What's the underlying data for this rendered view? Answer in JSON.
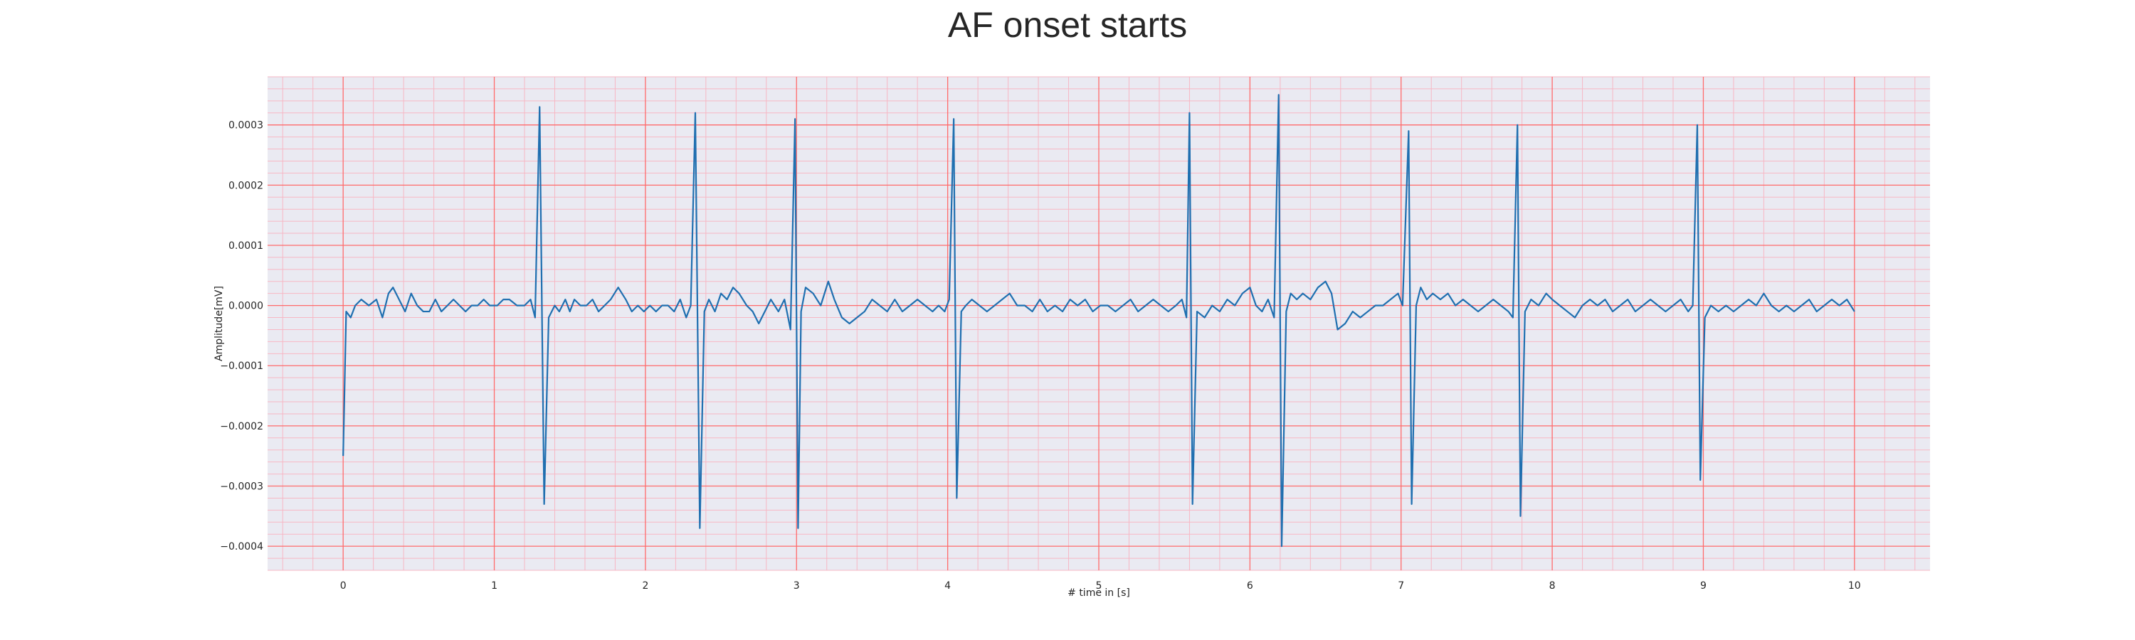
{
  "chart_data": {
    "type": "line",
    "title": "AF onset starts",
    "xlabel": "# time in [s]",
    "ylabel": "Amplitude[mV]",
    "xlim": [
      -0.5,
      10.5
    ],
    "ylim": [
      -0.00044,
      0.00038
    ],
    "xticks": [
      0,
      1,
      2,
      3,
      4,
      5,
      6,
      7,
      8,
      9,
      10
    ],
    "xtick_labels": [
      "0",
      "1",
      "2",
      "3",
      "4",
      "5",
      "6",
      "7",
      "8",
      "9",
      "10"
    ],
    "yticks": [
      0.0003,
      0.0002,
      0.0001,
      0.0,
      -0.0001,
      -0.0002,
      -0.0003,
      -0.0004
    ],
    "ytick_labels": [
      "0.0003",
      "0.0002",
      "0.0001",
      "0.0000",
      "−0.0001",
      "−0.0002",
      "−0.0003",
      "−0.0004"
    ],
    "grid": true,
    "colors": {
      "background": "#eaeaf2",
      "major_grid": "#ff6b6b",
      "minor_grid": "#f7b7c4",
      "line": "#1f6fb0"
    },
    "series": [
      {
        "values_x_y": [
          [
            0.0,
            -0.00025
          ],
          [
            0.02,
            -1e-05
          ],
          [
            0.05,
            -2e-05
          ],
          [
            0.08,
            0.0
          ],
          [
            0.12,
            1e-05
          ],
          [
            0.17,
            0.0
          ],
          [
            0.22,
            1e-05
          ],
          [
            0.26,
            -2e-05
          ],
          [
            0.3,
            2e-05
          ],
          [
            0.33,
            3e-05
          ],
          [
            0.37,
            1e-05
          ],
          [
            0.41,
            -1e-05
          ],
          [
            0.45,
            2e-05
          ],
          [
            0.49,
            0.0
          ],
          [
            0.53,
            -1e-05
          ],
          [
            0.57,
            -1e-05
          ],
          [
            0.61,
            1e-05
          ],
          [
            0.65,
            -1e-05
          ],
          [
            0.69,
            0.0
          ],
          [
            0.73,
            1e-05
          ],
          [
            0.77,
            0.0
          ],
          [
            0.81,
            -1e-05
          ],
          [
            0.85,
            0.0
          ],
          [
            0.89,
            0.0
          ],
          [
            0.93,
            1e-05
          ],
          [
            0.97,
            0.0
          ],
          [
            1.02,
            0.0
          ],
          [
            1.06,
            1e-05
          ],
          [
            1.1,
            1e-05
          ],
          [
            1.15,
            0.0
          ],
          [
            1.2,
            0.0
          ],
          [
            1.24,
            1e-05
          ],
          [
            1.27,
            -2e-05
          ],
          [
            1.3,
            0.00033
          ],
          [
            1.33,
            -0.00033
          ],
          [
            1.36,
            -2e-05
          ],
          [
            1.4,
            0.0
          ],
          [
            1.43,
            -1e-05
          ],
          [
            1.47,
            1e-05
          ],
          [
            1.5,
            -1e-05
          ],
          [
            1.53,
            1e-05
          ],
          [
            1.57,
            0.0
          ],
          [
            1.61,
            0.0
          ],
          [
            1.65,
            1e-05
          ],
          [
            1.69,
            -1e-05
          ],
          [
            1.73,
            0.0
          ],
          [
            1.77,
            1e-05
          ],
          [
            1.82,
            3e-05
          ],
          [
            1.87,
            1e-05
          ],
          [
            1.91,
            -1e-05
          ],
          [
            1.95,
            0.0
          ],
          [
            1.99,
            -1e-05
          ],
          [
            2.03,
            0.0
          ],
          [
            2.07,
            -1e-05
          ],
          [
            2.11,
            0.0
          ],
          [
            2.15,
            0.0
          ],
          [
            2.19,
            -1e-05
          ],
          [
            2.23,
            1e-05
          ],
          [
            2.27,
            -2e-05
          ],
          [
            2.3,
            0.0
          ],
          [
            2.33,
            0.00032
          ],
          [
            2.36,
            -0.00037
          ],
          [
            2.39,
            -1e-05
          ],
          [
            2.42,
            1e-05
          ],
          [
            2.46,
            -1e-05
          ],
          [
            2.5,
            2e-05
          ],
          [
            2.54,
            1e-05
          ],
          [
            2.58,
            3e-05
          ],
          [
            2.62,
            2e-05
          ],
          [
            2.67,
            0.0
          ],
          [
            2.71,
            -1e-05
          ],
          [
            2.75,
            -3e-05
          ],
          [
            2.79,
            -1e-05
          ],
          [
            2.83,
            1e-05
          ],
          [
            2.88,
            -1e-05
          ],
          [
            2.92,
            1e-05
          ],
          [
            2.96,
            -4e-05
          ],
          [
            2.99,
            0.00031
          ],
          [
            3.01,
            -0.00037
          ],
          [
            3.03,
            -1e-05
          ],
          [
            3.06,
            3e-05
          ],
          [
            3.11,
            2e-05
          ],
          [
            3.16,
            0.0
          ],
          [
            3.21,
            4e-05
          ],
          [
            3.25,
            1e-05
          ],
          [
            3.3,
            -2e-05
          ],
          [
            3.35,
            -3e-05
          ],
          [
            3.4,
            -2e-05
          ],
          [
            3.45,
            -1e-05
          ],
          [
            3.5,
            1e-05
          ],
          [
            3.55,
            0.0
          ],
          [
            3.6,
            -1e-05
          ],
          [
            3.65,
            1e-05
          ],
          [
            3.7,
            -1e-05
          ],
          [
            3.75,
            0.0
          ],
          [
            3.8,
            1e-05
          ],
          [
            3.85,
            0.0
          ],
          [
            3.9,
            -1e-05
          ],
          [
            3.94,
            0.0
          ],
          [
            3.98,
            -1e-05
          ],
          [
            4.01,
            1e-05
          ],
          [
            4.04,
            0.00031
          ],
          [
            4.06,
            -0.00032
          ],
          [
            4.09,
            -1e-05
          ],
          [
            4.12,
            0.0
          ],
          [
            4.16,
            1e-05
          ],
          [
            4.21,
            0.0
          ],
          [
            4.26,
            -1e-05
          ],
          [
            4.31,
            0.0
          ],
          [
            4.36,
            1e-05
          ],
          [
            4.41,
            2e-05
          ],
          [
            4.46,
            0.0
          ],
          [
            4.51,
            0.0
          ],
          [
            4.56,
            -1e-05
          ],
          [
            4.61,
            1e-05
          ],
          [
            4.66,
            -1e-05
          ],
          [
            4.71,
            0.0
          ],
          [
            4.76,
            -1e-05
          ],
          [
            4.81,
            1e-05
          ],
          [
            4.86,
            0.0
          ],
          [
            4.91,
            1e-05
          ],
          [
            4.96,
            -1e-05
          ],
          [
            5.01,
            0.0
          ],
          [
            5.06,
            0.0
          ],
          [
            5.11,
            -1e-05
          ],
          [
            5.16,
            0.0
          ],
          [
            5.21,
            1e-05
          ],
          [
            5.26,
            -1e-05
          ],
          [
            5.31,
            0.0
          ],
          [
            5.36,
            1e-05
          ],
          [
            5.41,
            0.0
          ],
          [
            5.46,
            -1e-05
          ],
          [
            5.51,
            0.0
          ],
          [
            5.55,
            1e-05
          ],
          [
            5.58,
            -2e-05
          ],
          [
            5.6,
            0.00032
          ],
          [
            5.62,
            -0.00033
          ],
          [
            5.65,
            -1e-05
          ],
          [
            5.7,
            -2e-05
          ],
          [
            5.75,
            0.0
          ],
          [
            5.8,
            -1e-05
          ],
          [
            5.85,
            1e-05
          ],
          [
            5.9,
            0.0
          ],
          [
            5.95,
            2e-05
          ],
          [
            6.0,
            3e-05
          ],
          [
            6.04,
            0.0
          ],
          [
            6.08,
            -1e-05
          ],
          [
            6.12,
            1e-05
          ],
          [
            6.16,
            -2e-05
          ],
          [
            6.19,
            0.00035
          ],
          [
            6.21,
            -0.0004
          ],
          [
            6.24,
            -1e-05
          ],
          [
            6.27,
            2e-05
          ],
          [
            6.31,
            1e-05
          ],
          [
            6.35,
            2e-05
          ],
          [
            6.4,
            1e-05
          ],
          [
            6.45,
            3e-05
          ],
          [
            6.5,
            4e-05
          ],
          [
            6.54,
            2e-05
          ],
          [
            6.58,
            -4e-05
          ],
          [
            6.63,
            -3e-05
          ],
          [
            6.68,
            -1e-05
          ],
          [
            6.73,
            -2e-05
          ],
          [
            6.78,
            -1e-05
          ],
          [
            6.83,
            0.0
          ],
          [
            6.88,
            0.0
          ],
          [
            6.93,
            1e-05
          ],
          [
            6.98,
            2e-05
          ],
          [
            7.01,
            0.0
          ],
          [
            7.05,
            0.00029
          ],
          [
            7.07,
            -0.00033
          ],
          [
            7.1,
            0.0
          ],
          [
            7.13,
            3e-05
          ],
          [
            7.17,
            1e-05
          ],
          [
            7.21,
            2e-05
          ],
          [
            7.26,
            1e-05
          ],
          [
            7.31,
            2e-05
          ],
          [
            7.36,
            0.0
          ],
          [
            7.41,
            1e-05
          ],
          [
            7.46,
            0.0
          ],
          [
            7.51,
            -1e-05
          ],
          [
            7.56,
            0.0
          ],
          [
            7.61,
            1e-05
          ],
          [
            7.66,
            0.0
          ],
          [
            7.71,
            -1e-05
          ],
          [
            7.74,
            -2e-05
          ],
          [
            7.77,
            0.0003
          ],
          [
            7.79,
            -0.00035
          ],
          [
            7.82,
            -1e-05
          ],
          [
            7.86,
            1e-05
          ],
          [
            7.91,
            0.0
          ],
          [
            7.96,
            2e-05
          ],
          [
            8.0,
            1e-05
          ],
          [
            8.05,
            0.0
          ],
          [
            8.1,
            -1e-05
          ],
          [
            8.15,
            -2e-05
          ],
          [
            8.2,
            0.0
          ],
          [
            8.25,
            1e-05
          ],
          [
            8.3,
            0.0
          ],
          [
            8.35,
            1e-05
          ],
          [
            8.4,
            -1e-05
          ],
          [
            8.45,
            0.0
          ],
          [
            8.5,
            1e-05
          ],
          [
            8.55,
            -1e-05
          ],
          [
            8.6,
            0.0
          ],
          [
            8.65,
            1e-05
          ],
          [
            8.7,
            0.0
          ],
          [
            8.75,
            -1e-05
          ],
          [
            8.8,
            0.0
          ],
          [
            8.85,
            1e-05
          ],
          [
            8.9,
            -1e-05
          ],
          [
            8.93,
            0.0
          ],
          [
            8.96,
            0.0003
          ],
          [
            8.98,
            -0.00029
          ],
          [
            9.01,
            -2e-05
          ],
          [
            9.05,
            0.0
          ],
          [
            9.1,
            -1e-05
          ],
          [
            9.15,
            0.0
          ],
          [
            9.2,
            -1e-05
          ],
          [
            9.25,
            0.0
          ],
          [
            9.3,
            1e-05
          ],
          [
            9.35,
            0.0
          ],
          [
            9.4,
            2e-05
          ],
          [
            9.45,
            0.0
          ],
          [
            9.5,
            -1e-05
          ],
          [
            9.55,
            0.0
          ],
          [
            9.6,
            -1e-05
          ],
          [
            9.65,
            0.0
          ],
          [
            9.7,
            1e-05
          ],
          [
            9.75,
            -1e-05
          ],
          [
            9.8,
            0.0
          ],
          [
            9.85,
            1e-05
          ],
          [
            9.9,
            0.0
          ],
          [
            9.95,
            1e-05
          ],
          [
            10.0,
            -1e-05
          ]
        ]
      }
    ]
  }
}
